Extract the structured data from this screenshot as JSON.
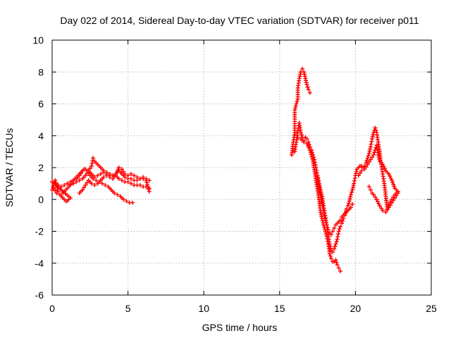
{
  "chart_data": {
    "type": "scatter",
    "title": "Day 022 of 2014, Sidereal Day-to-day VTEC variation (SDTVAR) for receiver p011",
    "xlabel": "GPS time / hours",
    "ylabel": "SDTVAR / TECUs",
    "xlim": [
      0,
      25
    ],
    "ylim": [
      -6,
      10
    ],
    "xticks": [
      0,
      5,
      10,
      15,
      20,
      25
    ],
    "yticks": [
      -6,
      -4,
      -2,
      0,
      2,
      4,
      6,
      8,
      10
    ],
    "grid": true,
    "marker": "+",
    "series": [
      {
        "name": "SDTVAR",
        "color": "#ff0000",
        "points": [
          [
            0.0,
            0.6
          ],
          [
            0.1,
            0.9
          ],
          [
            0.2,
            1.2
          ],
          [
            0.3,
            0.9
          ],
          [
            0.4,
            0.5
          ],
          [
            0.5,
            0.3
          ],
          [
            0.6,
            0.2
          ],
          [
            0.7,
            0.1
          ],
          [
            0.8,
            0.0
          ],
          [
            0.9,
            -0.1
          ],
          [
            1.0,
            -0.1
          ],
          [
            1.1,
            0.0
          ],
          [
            1.2,
            0.1
          ],
          [
            0.0,
            1.1
          ],
          [
            0.2,
            1.0
          ],
          [
            0.4,
            0.9
          ],
          [
            0.6,
            0.8
          ],
          [
            0.8,
            0.9
          ],
          [
            1.0,
            1.0
          ],
          [
            1.2,
            1.1
          ],
          [
            1.4,
            1.2
          ],
          [
            1.6,
            1.3
          ],
          [
            1.8,
            1.5
          ],
          [
            2.0,
            1.8
          ],
          [
            2.2,
            1.9
          ],
          [
            2.4,
            1.8
          ],
          [
            2.6,
            2.1
          ],
          [
            2.7,
            2.6
          ],
          [
            2.8,
            2.4
          ],
          [
            3.0,
            2.2
          ],
          [
            3.2,
            2.0
          ],
          [
            3.4,
            1.8
          ],
          [
            3.6,
            1.7
          ],
          [
            3.8,
            1.6
          ],
          [
            4.0,
            1.5
          ],
          [
            4.2,
            1.5
          ],
          [
            4.4,
            1.3
          ],
          [
            4.6,
            1.2
          ],
          [
            4.8,
            1.1
          ],
          [
            5.0,
            1.1
          ],
          [
            5.2,
            1.0
          ],
          [
            5.4,
            0.9
          ],
          [
            5.6,
            0.9
          ],
          [
            5.8,
            0.9
          ],
          [
            6.0,
            0.8
          ],
          [
            6.2,
            0.8
          ],
          [
            6.4,
            0.7
          ],
          [
            0.1,
            0.7
          ],
          [
            0.3,
            0.4
          ],
          [
            0.5,
            0.3
          ],
          [
            0.7,
            0.4
          ],
          [
            0.9,
            0.6
          ],
          [
            1.1,
            0.8
          ],
          [
            1.3,
            1.1
          ],
          [
            1.5,
            1.3
          ],
          [
            1.7,
            1.5
          ],
          [
            1.9,
            1.7
          ],
          [
            2.1,
            1.9
          ],
          [
            2.3,
            1.8
          ],
          [
            2.5,
            1.5
          ],
          [
            2.7,
            1.3
          ],
          [
            2.9,
            1.2
          ],
          [
            3.1,
            1.1
          ],
          [
            3.3,
            1.0
          ],
          [
            3.5,
            0.9
          ],
          [
            3.7,
            0.8
          ],
          [
            3.9,
            0.6
          ],
          [
            4.1,
            0.4
          ],
          [
            4.3,
            0.3
          ],
          [
            4.5,
            0.2
          ],
          [
            4.7,
            0.0
          ],
          [
            4.9,
            -0.1
          ],
          [
            5.1,
            -0.2
          ],
          [
            5.3,
            -0.2
          ],
          [
            1.2,
            0.9
          ],
          [
            1.4,
            1.0
          ],
          [
            1.6,
            1.1
          ],
          [
            1.8,
            1.2
          ],
          [
            2.0,
            1.3
          ],
          [
            2.2,
            1.5
          ],
          [
            2.4,
            1.8
          ],
          [
            2.6,
            1.6
          ],
          [
            2.8,
            1.4
          ],
          [
            3.0,
            1.5
          ],
          [
            3.2,
            1.6
          ],
          [
            3.4,
            1.7
          ],
          [
            3.6,
            1.6
          ],
          [
            3.8,
            1.5
          ],
          [
            4.0,
            1.5
          ],
          [
            4.2,
            1.6
          ],
          [
            4.4,
            1.8
          ],
          [
            4.6,
            1.6
          ],
          [
            4.8,
            1.4
          ],
          [
            5.0,
            1.3
          ],
          [
            5.2,
            1.3
          ],
          [
            5.4,
            1.2
          ],
          [
            5.6,
            1.2
          ],
          [
            5.8,
            1.3
          ],
          [
            6.0,
            1.4
          ],
          [
            6.2,
            1.3
          ],
          [
            6.4,
            1.2
          ],
          [
            1.8,
            0.4
          ],
          [
            2.0,
            0.6
          ],
          [
            2.2,
            0.9
          ],
          [
            2.4,
            1.2
          ],
          [
            2.6,
            1.0
          ],
          [
            2.8,
            0.9
          ],
          [
            3.0,
            1.0
          ],
          [
            3.2,
            1.2
          ],
          [
            3.4,
            1.4
          ],
          [
            3.6,
            1.5
          ],
          [
            3.8,
            1.4
          ],
          [
            4.0,
            1.3
          ],
          [
            4.2,
            1.6
          ],
          [
            4.4,
            2.0
          ],
          [
            4.6,
            1.9
          ],
          [
            4.8,
            1.6
          ],
          [
            5.0,
            1.5
          ],
          [
            5.2,
            1.6
          ],
          [
            5.4,
            1.5
          ],
          [
            5.6,
            1.4
          ],
          [
            5.8,
            1.3
          ],
          [
            6.0,
            1.3
          ],
          [
            6.2,
            1.2
          ],
          [
            6.4,
            0.5
          ],
          [
            15.8,
            2.8
          ],
          [
            15.9,
            3.6
          ],
          [
            16.0,
            4.2
          ],
          [
            16.0,
            5.6
          ],
          [
            16.1,
            6.0
          ],
          [
            16.2,
            6.3
          ],
          [
            16.2,
            7.0
          ],
          [
            16.3,
            7.6
          ],
          [
            16.4,
            8.0
          ],
          [
            16.5,
            8.2
          ],
          [
            16.6,
            8.0
          ],
          [
            16.7,
            7.6
          ],
          [
            16.8,
            7.2
          ],
          [
            16.9,
            6.9
          ],
          [
            17.0,
            6.7
          ],
          [
            16.0,
            3.0
          ],
          [
            16.1,
            3.6
          ],
          [
            16.2,
            4.3
          ],
          [
            16.3,
            4.8
          ],
          [
            16.4,
            4.2
          ],
          [
            16.5,
            3.9
          ],
          [
            16.6,
            3.7
          ],
          [
            16.7,
            3.9
          ],
          [
            16.8,
            3.8
          ],
          [
            16.9,
            3.6
          ],
          [
            17.0,
            3.3
          ],
          [
            17.1,
            3.1
          ],
          [
            17.2,
            2.8
          ],
          [
            17.3,
            2.5
          ],
          [
            17.4,
            2.0
          ],
          [
            17.5,
            1.5
          ],
          [
            17.6,
            1.0
          ],
          [
            17.7,
            0.6
          ],
          [
            17.8,
            0.2
          ],
          [
            17.9,
            -0.4
          ],
          [
            18.0,
            -1.0
          ],
          [
            18.1,
            -1.6
          ],
          [
            18.2,
            -2.2
          ],
          [
            18.3,
            -2.8
          ],
          [
            18.4,
            -3.2
          ],
          [
            18.5,
            -3.3
          ],
          [
            18.6,
            -3.1
          ],
          [
            18.7,
            -2.8
          ],
          [
            18.8,
            -2.5
          ],
          [
            18.9,
            -2.0
          ],
          [
            19.0,
            -1.7
          ],
          [
            19.1,
            -1.5
          ],
          [
            19.2,
            -1.2
          ],
          [
            19.3,
            -1.0
          ],
          [
            19.4,
            -0.6
          ],
          [
            19.5,
            -0.4
          ],
          [
            19.6,
            -0.1
          ],
          [
            19.7,
            0.3
          ],
          [
            19.8,
            0.6
          ],
          [
            19.9,
            1.0
          ],
          [
            20.0,
            1.5
          ],
          [
            20.1,
            1.9
          ],
          [
            20.2,
            2.0
          ],
          [
            20.3,
            2.1
          ],
          [
            20.4,
            2.1
          ],
          [
            20.5,
            2.0
          ],
          [
            20.6,
            2.1
          ],
          [
            20.7,
            2.3
          ],
          [
            20.8,
            2.6
          ],
          [
            20.9,
            2.9
          ],
          [
            21.0,
            3.3
          ],
          [
            21.1,
            3.8
          ],
          [
            21.2,
            4.2
          ],
          [
            21.3,
            4.5
          ],
          [
            21.4,
            4.2
          ],
          [
            21.5,
            3.6
          ],
          [
            21.6,
            3.0
          ],
          [
            21.7,
            2.2
          ],
          [
            21.8,
            1.6
          ],
          [
            21.9,
            1.0
          ],
          [
            22.0,
            0.2
          ],
          [
            22.1,
            -0.6
          ],
          [
            22.2,
            -0.3
          ],
          [
            22.4,
            0.0
          ],
          [
            22.6,
            0.3
          ],
          [
            22.8,
            0.5
          ],
          [
            16.2,
            3.9
          ],
          [
            16.4,
            3.8
          ],
          [
            16.6,
            3.6
          ],
          [
            16.8,
            3.5
          ],
          [
            17.0,
            3.1
          ],
          [
            17.2,
            2.4
          ],
          [
            17.4,
            1.2
          ],
          [
            17.6,
            0.0
          ],
          [
            17.7,
            -0.8
          ],
          [
            17.8,
            -1.2
          ],
          [
            17.9,
            -1.6
          ],
          [
            18.0,
            -1.9
          ],
          [
            18.1,
            -2.3
          ],
          [
            18.2,
            -2.8
          ],
          [
            18.3,
            -3.4
          ],
          [
            18.4,
            -3.7
          ],
          [
            18.5,
            -3.9
          ],
          [
            18.6,
            -3.9
          ],
          [
            18.7,
            -3.8
          ],
          [
            18.8,
            -4.1
          ],
          [
            18.9,
            -4.3
          ],
          [
            19.0,
            -4.5
          ],
          [
            17.5,
            1.4
          ],
          [
            17.6,
            0.8
          ],
          [
            17.7,
            0.3
          ],
          [
            17.8,
            -0.2
          ],
          [
            17.9,
            -0.7
          ],
          [
            18.0,
            -1.2
          ],
          [
            18.1,
            -1.6
          ],
          [
            18.2,
            -1.9
          ],
          [
            18.3,
            -2.1
          ],
          [
            18.4,
            -2.2
          ],
          [
            18.5,
            -2.0
          ],
          [
            18.6,
            -1.8
          ],
          [
            18.7,
            -1.6
          ],
          [
            18.8,
            -1.5
          ],
          [
            18.9,
            -1.4
          ],
          [
            19.0,
            -1.3
          ],
          [
            19.1,
            -1.1
          ],
          [
            19.2,
            -1.0
          ],
          [
            19.3,
            -0.9
          ],
          [
            19.4,
            -0.8
          ],
          [
            19.5,
            -0.7
          ],
          [
            19.6,
            -0.6
          ],
          [
            19.7,
            -0.5
          ],
          [
            19.8,
            -0.3
          ],
          [
            20.2,
            1.5
          ],
          [
            20.4,
            1.8
          ],
          [
            20.6,
            1.9
          ],
          [
            20.8,
            2.2
          ],
          [
            21.0,
            2.5
          ],
          [
            21.2,
            2.8
          ],
          [
            21.4,
            3.4
          ],
          [
            21.5,
            2.8
          ],
          [
            21.6,
            2.4
          ],
          [
            21.8,
            2.2
          ],
          [
            22.0,
            1.8
          ],
          [
            22.2,
            1.6
          ],
          [
            22.4,
            1.2
          ],
          [
            22.6,
            0.7
          ],
          [
            22.7,
            0.6
          ],
          [
            22.8,
            0.5
          ],
          [
            20.9,
            0.8
          ],
          [
            21.0,
            0.6
          ],
          [
            21.1,
            0.4
          ],
          [
            21.2,
            0.3
          ],
          [
            21.4,
            0.0
          ],
          [
            21.6,
            -0.4
          ],
          [
            21.8,
            -0.7
          ],
          [
            22.0,
            -0.8
          ],
          [
            22.2,
            -0.5
          ],
          [
            22.4,
            -0.2
          ],
          [
            22.6,
            0.1
          ],
          [
            22.8,
            0.4
          ]
        ]
      }
    ]
  }
}
